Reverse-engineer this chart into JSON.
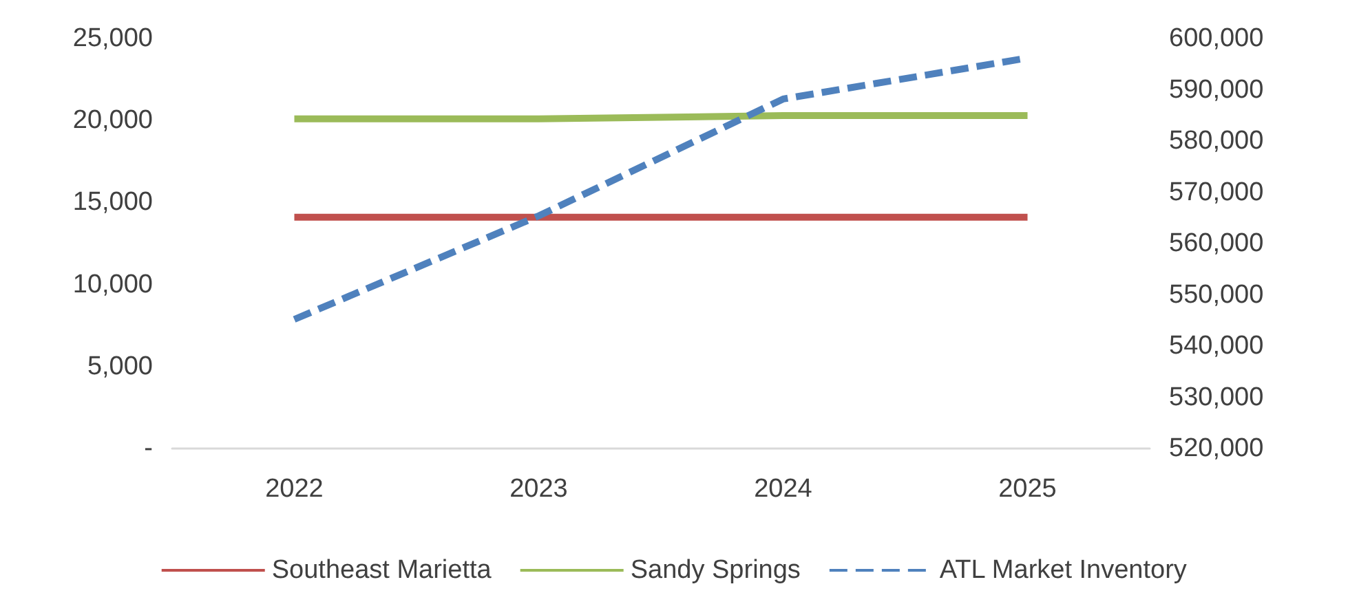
{
  "chart_data": {
    "type": "line",
    "categories": [
      "2022",
      "2023",
      "2024",
      "2025"
    ],
    "series": [
      {
        "name": "Southeast Marietta",
        "color": "#c0504d",
        "values": [
          14100,
          14100,
          14100,
          14100
        ]
      },
      {
        "name": "Sandy Springs",
        "color": "#9bbb59",
        "values": [
          20100,
          20100,
          20300,
          20300
        ]
      },
      {
        "name": "ATL Market Inventory",
        "color": "#4f81bd",
        "values": [
          545200,
          565400,
          588200,
          596200
        ],
        "axis": "y2",
        "line_style": "dashed"
      }
    ],
    "ylim": [
      0,
      25000
    ],
    "yticks": [
      {
        "value": 0,
        "label": "-"
      },
      {
        "value": 5000,
        "label": "5,000"
      },
      {
        "value": 10000,
        "label": "10,000"
      },
      {
        "value": 15000,
        "label": "15,000"
      },
      {
        "value": 20000,
        "label": "20,000"
      },
      {
        "value": 25000,
        "label": "25,000"
      }
    ],
    "y2lim": [
      520000,
      600000
    ],
    "y2ticks": [
      {
        "value": 520000,
        "label": "520,000"
      },
      {
        "value": 530000,
        "label": "530,000"
      },
      {
        "value": 540000,
        "label": "540,000"
      },
      {
        "value": 550000,
        "label": "550,000"
      },
      {
        "value": 560000,
        "label": "560,000"
      },
      {
        "value": 570000,
        "label": "570,000"
      },
      {
        "value": 580000,
        "label": "580,000"
      },
      {
        "value": 590000,
        "label": "590,000"
      },
      {
        "value": 600000,
        "label": "600,000"
      }
    ],
    "grid": false,
    "legend": "bottom",
    "marker": "none",
    "line_style": "solid"
  }
}
